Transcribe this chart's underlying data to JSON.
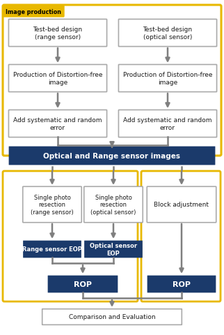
{
  "fig_width": 3.22,
  "fig_height": 4.81,
  "dpi": 100,
  "bg_color": "#ffffff",
  "yellow_border_color": "#e8b800",
  "dark_blue": "#1b3a6b",
  "box_white_bg": "#ffffff",
  "box_white_border": "#aaaaaa",
  "arrow_color": "#7f7f7f",
  "label_image_production": "Image production",
  "label_test_bed_range": "Test-bed design\n(range sensor)",
  "label_test_bed_optical": "Test-bed design\n(optical sensor)",
  "label_distortion_range": "Production of Distortion-free\nimage",
  "label_distortion_optical": "Production of Distortion-free\nimage",
  "label_error_range": "Add systematic and random\nerror",
  "label_error_optical": "Add systematic and random\nerror",
  "label_optical_range_images": "Optical and Range sensor images",
  "label_single_photo_range": "Single photo\nresection\n(range sensor)",
  "label_single_photo_optical": "Single photo\nresection\n(optical sensor)",
  "label_block_adj": "Block adjustment",
  "label_range_eop": "Range sensor EOP",
  "label_optical_eop": "Optical sensor\nEOP",
  "label_rop_left": "ROP",
  "label_rop_right": "ROP",
  "label_comparison": "Comparison and Evaluation",
  "text_color_white": "#ffffff",
  "text_color_dark": "#1a1a1a"
}
